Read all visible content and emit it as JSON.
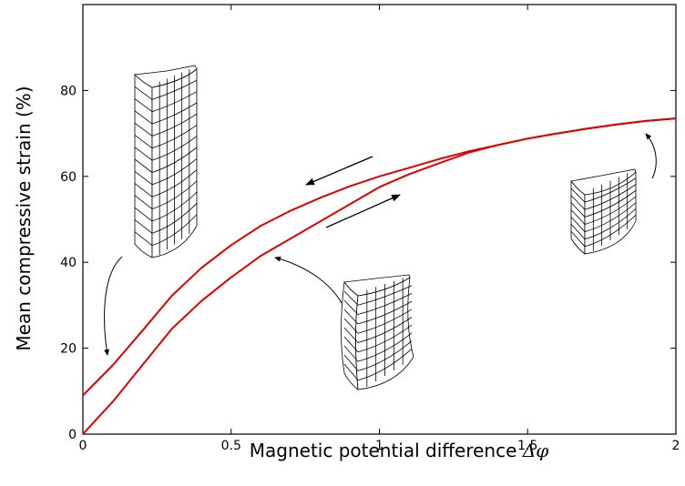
{
  "chart_data": {
    "type": "line",
    "xlabel": "Magnetic potential difference",
    "xlabel_symbol": "Δφ",
    "ylabel": "Mean compressive strain",
    "ylabel_unit": "(%)",
    "xlim": [
      0,
      2
    ],
    "ylim": [
      0,
      100
    ],
    "x_ticks": [
      0,
      0.5,
      1,
      1.5,
      2
    ],
    "x_tick_labels": [
      "0",
      "0.5",
      "1",
      "1.5",
      "2"
    ],
    "y_ticks": [
      0,
      20,
      40,
      60,
      80
    ],
    "y_tick_labels": [
      "0",
      "20",
      "40",
      "60",
      "80"
    ],
    "grid": false,
    "line_color": "#e00000",
    "series": [
      {
        "x": [
          0,
          0.1,
          0.2,
          0.3,
          0.4,
          0.5,
          0.6,
          0.7,
          0.8,
          0.9,
          1.0,
          1.1,
          1.2,
          1.3,
          1.4,
          1.5,
          1.6,
          1.7,
          1.8,
          1.9,
          2.0
        ],
        "values": [
          0,
          7.5,
          16,
          24.5,
          31,
          36.5,
          41.5,
          45.5,
          49.5,
          53.5,
          57.5,
          60.5,
          63,
          65.5,
          67.3,
          68.8,
          70,
          71.1,
          72.1,
          72.9,
          73.5
        ]
      },
      {
        "x": [
          0,
          0.1,
          0.2,
          0.3,
          0.4,
          0.5,
          0.6,
          0.7,
          0.8,
          0.9,
          1.0,
          1.1,
          1.2,
          1.3,
          1.4,
          1.5,
          1.6,
          1.7,
          1.8,
          1.9,
          2.0
        ],
        "values": [
          9,
          16,
          24,
          32.2,
          38.7,
          44,
          48.5,
          52,
          55,
          57.7,
          60,
          62,
          64,
          65.8,
          67.3,
          68.8,
          70,
          71.1,
          72.1,
          72.9,
          73.5
        ]
      }
    ],
    "annotations": [
      {
        "kind": "arrow",
        "direction": "loading"
      },
      {
        "kind": "arrow",
        "direction": "unloading"
      }
    ],
    "insets": [
      "tall-cylinder-mesh",
      "bulged-cylinder-mesh",
      "short-cylinder-mesh"
    ]
  }
}
